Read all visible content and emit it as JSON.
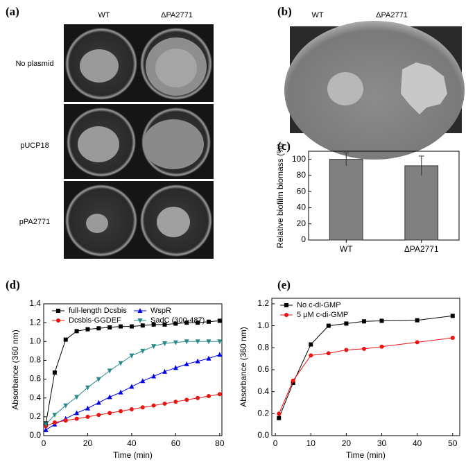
{
  "panels": {
    "a": {
      "label": "(a)",
      "columns": [
        "WT",
        "ΔPA2771"
      ],
      "rows": [
        "No plasmid",
        "pUCP18",
        "pPA2771"
      ]
    },
    "b": {
      "label": "(b)",
      "columns": [
        "WT",
        "ΔPA2771"
      ]
    },
    "c": {
      "label": "(c)"
    },
    "d": {
      "label": "(d)"
    },
    "e": {
      "label": "(e)"
    }
  },
  "chart_data": [
    {
      "type": "bar",
      "y_label": "Relative biofilm biomass (%)",
      "categories": [
        "WT",
        "ΔPA2771"
      ],
      "values": [
        100,
        92
      ],
      "errors": [
        8,
        12
      ],
      "color": "#808080",
      "ylim": [
        0,
        110
      ],
      "yticks": [
        0,
        20,
        40,
        60,
        80,
        100
      ]
    },
    {
      "type": "line",
      "x_label": "Time (min)",
      "y_label": "Absorbance (360 nm)",
      "x": [
        1,
        5,
        10,
        15,
        20,
        25,
        30,
        35,
        40,
        45,
        50,
        55,
        60,
        65,
        70,
        75,
        80
      ],
      "xlim": [
        0,
        81
      ],
      "xticks": [
        0,
        20,
        40,
        60,
        80
      ],
      "ylim": [
        0,
        1.4
      ],
      "yticks": [
        {
          "value": 0,
          "label": "0.0"
        },
        0.2,
        0.4,
        0.6,
        0.8,
        {
          "value": 1,
          "label": "1.0"
        },
        1.2,
        1.4
      ],
      "legend_columns": 2,
      "series": [
        {
          "name": "full-length Dcsbis",
          "color": "#000000",
          "marker": "square",
          "values": [
            0.13,
            0.67,
            1.02,
            1.11,
            1.13,
            1.14,
            1.15,
            1.16,
            1.16,
            1.17,
            1.18,
            1.18,
            1.19,
            1.2,
            1.2,
            1.21,
            1.22
          ]
        },
        {
          "name": "WspR",
          "color": "#0000ee",
          "marker": "triangle",
          "values": [
            0.06,
            0.12,
            0.18,
            0.24,
            0.29,
            0.35,
            0.41,
            0.46,
            0.52,
            0.58,
            0.63,
            0.68,
            0.72,
            0.76,
            0.79,
            0.82,
            0.86
          ]
        },
        {
          "name": "Dcsbis-GGDEF",
          "color": "#ee1111",
          "marker": "circle",
          "values": [
            0.1,
            0.14,
            0.16,
            0.18,
            0.2,
            0.22,
            0.24,
            0.26,
            0.28,
            0.3,
            0.32,
            0.34,
            0.36,
            0.38,
            0.4,
            0.42,
            0.44
          ]
        },
        {
          "name": "SadC (300-487)",
          "color": "#2a8a8a",
          "marker": "down-triangle",
          "values": [
            0.12,
            0.22,
            0.32,
            0.41,
            0.51,
            0.6,
            0.69,
            0.77,
            0.85,
            0.9,
            0.95,
            0.98,
            0.99,
            1.0,
            1.0,
            1.0,
            1.0
          ]
        }
      ]
    },
    {
      "type": "line",
      "x_label": "Time (min)",
      "y_label": "Absorbance (360 nm)",
      "x": [
        1,
        5,
        10,
        15,
        20,
        25,
        30,
        40,
        50
      ],
      "xlim": [
        -1,
        52
      ],
      "xticks": [
        0,
        10,
        20,
        30,
        40,
        50
      ],
      "ylim": [
        0,
        1.25
      ],
      "yticks": [
        {
          "value": 0,
          "label": "0.0"
        },
        0.2,
        0.4,
        0.6,
        0.8,
        {
          "value": 1,
          "label": "1.0"
        },
        1.2
      ],
      "legend_columns": 1,
      "series": [
        {
          "name": "No c-di-GMP",
          "color": "#000000",
          "marker": "square",
          "values": [
            0.16,
            0.48,
            0.83,
            1.0,
            1.02,
            1.04,
            1.045,
            1.05,
            1.09
          ]
        },
        {
          "name": "5 μM c-di-GMP",
          "color": "#ee1111",
          "marker": "circle",
          "values": [
            0.2,
            0.5,
            0.73,
            0.75,
            0.78,
            0.79,
            0.81,
            0.85,
            0.89
          ]
        }
      ]
    }
  ]
}
